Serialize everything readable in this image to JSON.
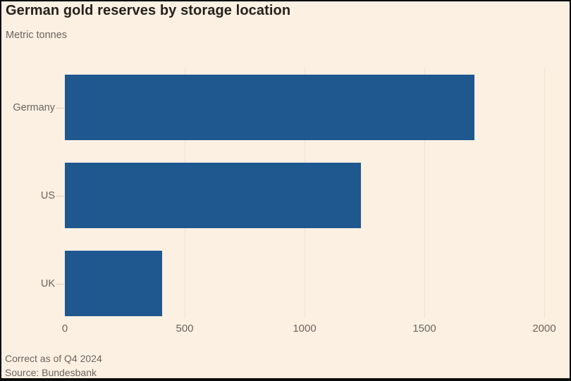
{
  "header": {
    "title": "German gold reserves by storage location",
    "subtitle": "Metric tonnes"
  },
  "footer": {
    "note": "Correct as of Q4 2024",
    "source": "Source: Bundesbank"
  },
  "colors": {
    "background": "#fcf0e2",
    "bar": "#1f578f",
    "title_text": "#26211d",
    "muted_text": "#6b645d",
    "gridline": "#f3e0d0",
    "axis_tick": "#d9c9ba",
    "frame_border": "#0b0b0b"
  },
  "chart_data": {
    "type": "bar",
    "orientation": "horizontal",
    "title": "German gold reserves by storage location",
    "subtitle": "Metric tonnes",
    "xlabel": "",
    "ylabel": "Metric tonnes",
    "categories": [
      "Germany",
      "US",
      "UK"
    ],
    "values": [
      1710,
      1236,
      405
    ],
    "xlim": [
      0,
      2000
    ],
    "xticks": [
      0,
      500,
      1000,
      1500,
      2000
    ],
    "grid": "vertical, faint",
    "legend": "none",
    "value_labels": "none"
  }
}
